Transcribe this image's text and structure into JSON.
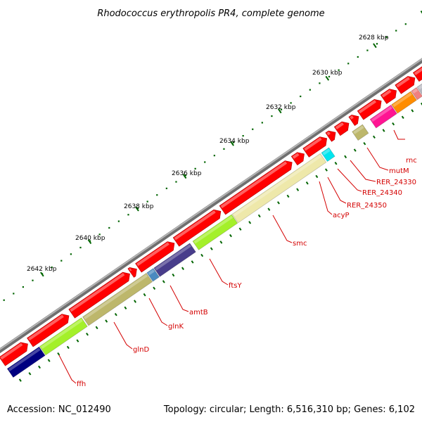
{
  "title": "Rhodococcus erythropolis PR4, complete genome",
  "footer": {
    "accession": "Accession: NC_012490",
    "summary": "Topology: circular; Length: 6,516,310 bp; Genes: 6,102"
  },
  "tick_labels": [
    "2628 kbp",
    "2630 kbp",
    "2632 kbp",
    "2634 kbp",
    "2636 kbp",
    "2638 kbp",
    "2640 kbp",
    "2642 kbp"
  ],
  "genes": [
    {
      "name": "rnc",
      "color": "#b8b8c0"
    },
    {
      "name": "mutM",
      "color": "#ff8c00"
    },
    {
      "name": "RER_24330",
      "color": "#ff1493"
    },
    {
      "name": "RER_24340",
      "color": "#f08080"
    },
    {
      "name": "RER_24350",
      "color": "#bdb76b"
    },
    {
      "name": "acyP",
      "color": "#00e5ee"
    },
    {
      "name": "smc",
      "color": "#eee8aa"
    },
    {
      "name": "ftsY",
      "color": "#a4f02a"
    },
    {
      "name": "amtB",
      "color": "#483d8b"
    },
    {
      "name": "glnK",
      "color": "#4a8ac0"
    },
    {
      "name": "glnD",
      "color": "#bdb76b"
    },
    {
      "name": "ffh",
      "color": "#000080"
    }
  ],
  "colors": {
    "forward_strand": "#ff0000",
    "backbone": "#888888",
    "ticks": "#006400",
    "label_lines": "#d40000"
  }
}
